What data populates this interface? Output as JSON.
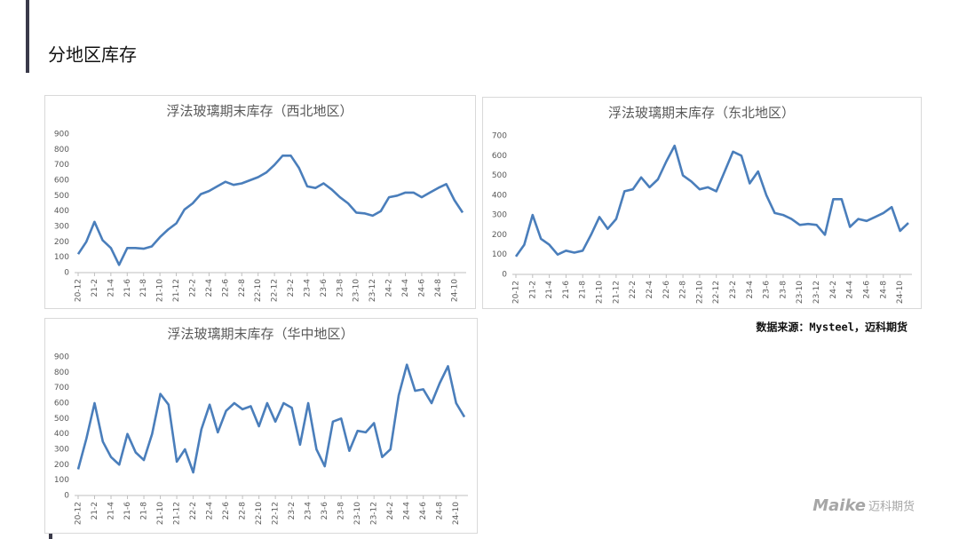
{
  "header": {
    "title": "分地区库存"
  },
  "chart_data": [
    {
      "type": "line",
      "title": "浮法玻璃期末库存（西北地区）",
      "color": "#4a7ebb",
      "categories": [
        "20-12",
        null,
        "21-2",
        null,
        "21-4",
        null,
        "21-6",
        null,
        "21-8",
        null,
        "21-10",
        null,
        "21-12",
        null,
        "22-2",
        null,
        "22-4",
        null,
        "22-6",
        null,
        "22-8",
        null,
        "22-10",
        null,
        "22-12",
        null,
        "23-2",
        null,
        "23-4",
        null,
        "23-6",
        null,
        "23-8",
        null,
        "23-10",
        null,
        "23-12",
        null,
        "24-2",
        null,
        "24-4",
        null,
        "24-6",
        null,
        "24-8",
        null,
        "24-10",
        null
      ],
      "values": [
        120,
        200,
        330,
        210,
        160,
        50,
        160,
        160,
        155,
        170,
        230,
        280,
        320,
        410,
        450,
        510,
        530,
        560,
        590,
        570,
        580,
        600,
        620,
        650,
        700,
        760,
        760,
        680,
        560,
        550,
        580,
        540,
        490,
        450,
        390,
        385,
        370,
        400,
        490,
        500,
        520,
        520,
        490,
        520,
        550,
        575,
        470,
        390
      ],
      "ylim": [
        0,
        900
      ],
      "yticks": [
        0,
        100,
        200,
        300,
        400,
        500,
        600,
        700,
        800,
        900
      ]
    },
    {
      "type": "line",
      "title": "浮法玻璃期末库存（东北地区）",
      "color": "#4a7ebb",
      "categories": [
        "20-12",
        null,
        "21-2",
        null,
        "21-4",
        null,
        "21-6",
        null,
        "21-8",
        null,
        "21-10",
        null,
        "21-12",
        null,
        "22-2",
        null,
        "22-4",
        null,
        "22-6",
        null,
        "22-8",
        null,
        "22-10",
        null,
        "22-12",
        null,
        "23-2",
        null,
        "23-4",
        null,
        "23-6",
        null,
        "23-8",
        null,
        "23-10",
        null,
        "23-12",
        null,
        "24-2",
        null,
        "24-4",
        null,
        "24-6",
        null,
        "24-8",
        null,
        "24-10",
        null
      ],
      "values": [
        90,
        150,
        300,
        180,
        150,
        100,
        120,
        110,
        120,
        200,
        290,
        230,
        280,
        420,
        430,
        490,
        440,
        480,
        570,
        650,
        500,
        470,
        430,
        440,
        420,
        520,
        620,
        600,
        460,
        520,
        400,
        310,
        300,
        280,
        250,
        255,
        250,
        200,
        380,
        380,
        240,
        280,
        270,
        290,
        310,
        340,
        220,
        260
      ],
      "ylim": [
        0,
        700
      ],
      "yticks": [
        0,
        100,
        200,
        300,
        400,
        500,
        600,
        700
      ]
    },
    {
      "type": "line",
      "title": "浮法玻璃期末库存（华中地区）",
      "color": "#4a7ebb",
      "categories": [
        "20-12",
        null,
        "21-2",
        null,
        "21-4",
        null,
        "21-6",
        null,
        "21-8",
        null,
        "21-10",
        null,
        "21-12",
        null,
        "22-2",
        null,
        "22-4",
        null,
        "22-6",
        null,
        "22-8",
        null,
        "22-10",
        null,
        "22-12",
        null,
        "23-2",
        null,
        "23-4",
        null,
        "23-6",
        null,
        "23-8",
        null,
        "23-10",
        null,
        "23-12",
        null,
        "24-2",
        null,
        "24-4",
        null,
        "24-6",
        null,
        "24-8",
        null,
        "24-10",
        null
      ],
      "values": [
        170,
        370,
        600,
        350,
        250,
        200,
        400,
        280,
        230,
        400,
        660,
        590,
        220,
        300,
        150,
        430,
        590,
        410,
        550,
        600,
        560,
        580,
        450,
        600,
        480,
        600,
        570,
        330,
        600,
        300,
        190,
        480,
        500,
        290,
        420,
        410,
        470,
        250,
        300,
        650,
        850,
        680,
        690,
        600,
        730,
        840,
        600,
        510
      ],
      "ylim": [
        0,
        900
      ],
      "yticks": [
        0,
        100,
        200,
        300,
        400,
        500,
        600,
        700,
        800,
        900
      ]
    }
  ],
  "source": "数据来源：Mysteel，迈科期货",
  "logo": {
    "brand": "Maike",
    "name": "迈科期货"
  }
}
